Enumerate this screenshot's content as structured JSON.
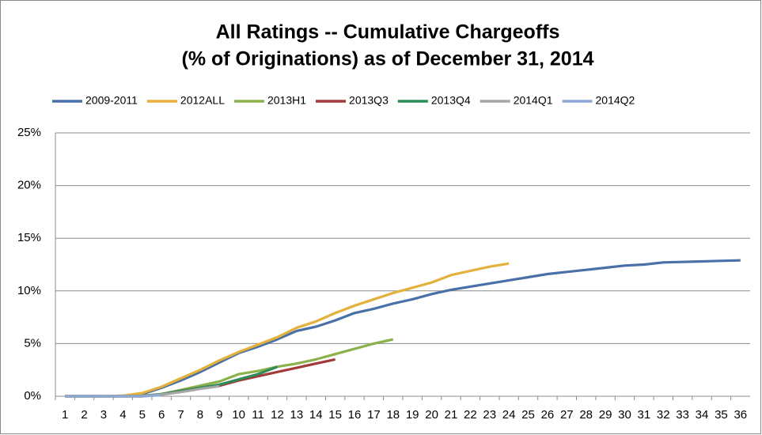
{
  "chart_data": {
    "type": "line",
    "title_lines": [
      "All Ratings -- Cumulative Chargeoffs",
      "(% of Originations) as of December 31, 2014"
    ],
    "categories": [
      "1",
      "2",
      "3",
      "4",
      "5",
      "6",
      "7",
      "8",
      "9",
      "10",
      "11",
      "12",
      "13",
      "14",
      "15",
      "16",
      "17",
      "18",
      "19",
      "20",
      "21",
      "22",
      "23",
      "24",
      "25",
      "26",
      "27",
      "28",
      "29",
      "30",
      "31",
      "32",
      "33",
      "34",
      "35",
      "36"
    ],
    "series": [
      {
        "name": "2009-2011",
        "color": "#4a70a8",
        "values": [
          0,
          0,
          0,
          0.05,
          0.2,
          0.8,
          1.5,
          2.3,
          3.2,
          4.1,
          4.7,
          5.4,
          6.2,
          6.6,
          7.2,
          7.9,
          8.3,
          8.8,
          9.2,
          9.7,
          10.1,
          10.4,
          10.7,
          11.0,
          11.3,
          11.6,
          11.8,
          12.0,
          12.2,
          12.4,
          12.5,
          12.7,
          12.75,
          12.8,
          12.85,
          12.9
        ]
      },
      {
        "name": "2012ALL",
        "color": "#e3b13c",
        "values": [
          0,
          0,
          0,
          0.05,
          0.3,
          0.9,
          1.7,
          2.5,
          3.4,
          4.2,
          4.9,
          5.6,
          6.5,
          7.1,
          7.9,
          8.6,
          9.2,
          9.8,
          10.3,
          10.8,
          11.5,
          11.9,
          12.3,
          12.6,
          null,
          null,
          null,
          null,
          null,
          null,
          null,
          null,
          null,
          null,
          null,
          null
        ]
      },
      {
        "name": "2013H1",
        "color": "#8cb04a",
        "values": [
          0,
          0,
          0,
          0,
          0.05,
          0.2,
          0.6,
          1.0,
          1.4,
          2.1,
          2.4,
          2.8,
          3.1,
          3.5,
          4.0,
          4.5,
          5.0,
          5.4,
          null,
          null,
          null,
          null,
          null,
          null,
          null,
          null,
          null,
          null,
          null,
          null,
          null,
          null,
          null,
          null,
          null,
          null
        ]
      },
      {
        "name": "2013Q3",
        "color": "#a33a3a",
        "values": [
          0,
          0,
          0,
          0,
          0,
          0.2,
          0.5,
          0.8,
          1.0,
          1.5,
          1.9,
          2.3,
          2.7,
          3.1,
          3.5,
          null,
          null,
          null,
          null,
          null,
          null,
          null,
          null,
          null,
          null,
          null,
          null,
          null,
          null,
          null,
          null,
          null,
          null,
          null,
          null,
          null
        ]
      },
      {
        "name": "2013Q4",
        "color": "#2e8b57",
        "values": [
          0,
          0,
          0,
          0,
          0,
          0.2,
          0.5,
          0.8,
          1.1,
          1.6,
          2.1,
          2.8,
          null,
          null,
          null,
          null,
          null,
          null,
          null,
          null,
          null,
          null,
          null,
          null,
          null,
          null,
          null,
          null,
          null,
          null,
          null,
          null,
          null,
          null,
          null,
          null
        ]
      },
      {
        "name": "2014Q1",
        "color": "#a6a6a6",
        "values": [
          0,
          0,
          0,
          0,
          0,
          0.15,
          0.4,
          0.7,
          0.95,
          null,
          null,
          null,
          null,
          null,
          null,
          null,
          null,
          null,
          null,
          null,
          null,
          null,
          null,
          null,
          null,
          null,
          null,
          null,
          null,
          null,
          null,
          null,
          null,
          null,
          null,
          null
        ]
      },
      {
        "name": "2014Q2",
        "color": "#8fa9d6",
        "values": [
          0,
          0,
          0,
          0,
          0,
          0.1,
          null,
          null,
          null,
          null,
          null,
          null,
          null,
          null,
          null,
          null,
          null,
          null,
          null,
          null,
          null,
          null,
          null,
          null,
          null,
          null,
          null,
          null,
          null,
          null,
          null,
          null,
          null,
          null,
          null,
          null
        ]
      }
    ],
    "ylim": [
      0,
      25
    ],
    "yticks": [
      {
        "value": 0,
        "label": "0%"
      },
      {
        "value": 5,
        "label": "5%"
      },
      {
        "value": 10,
        "label": "10%"
      },
      {
        "value": 15,
        "label": "15%"
      },
      {
        "value": 20,
        "label": "20%"
      },
      {
        "value": 25,
        "label": "25%"
      }
    ],
    "grid": true,
    "legend": "top"
  }
}
